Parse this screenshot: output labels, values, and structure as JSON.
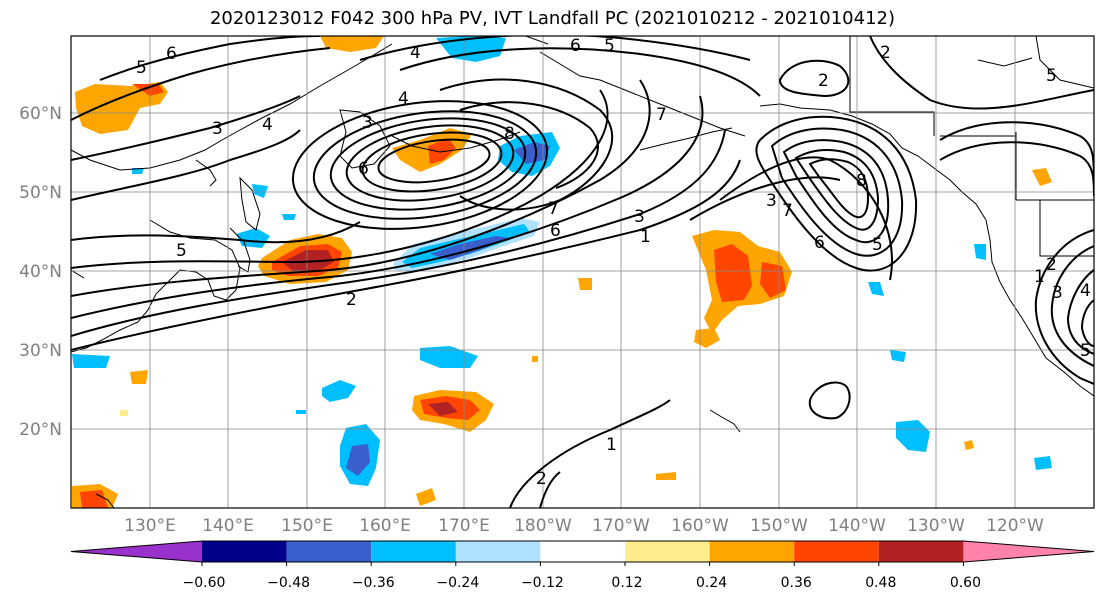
{
  "title": "2020123012 F042 300 hPa PV, IVT Landfall PC (2021010212 - 2021010412)",
  "lat_labels": [
    "60°N",
    "50°N",
    "40°N",
    "30°N",
    "20°N"
  ],
  "lon_labels": [
    "130°E",
    "140°E",
    "150°E",
    "160°E",
    "170°E",
    "180°W",
    "170°W",
    "160°W",
    "150°W",
    "140°W",
    "130°W",
    "120°W"
  ],
  "colorbar": {
    "ticks": [
      "−0.60",
      "−0.48",
      "−0.36",
      "−0.24",
      "−0.12",
      "0.12",
      "0.24",
      "0.36",
      "0.48",
      "0.60"
    ],
    "colors": [
      "#9932cc",
      "#00008b",
      "#3a5fcd",
      "#00bfff",
      "#b0e2ff",
      "#ffffff",
      "#ffec8b",
      "#ffa500",
      "#ff4500",
      "#b22222",
      "#ff82ab"
    ]
  },
  "contour_labels": [
    "6",
    "5",
    "4",
    "6",
    "5",
    "3",
    "4",
    "4",
    "3",
    "8",
    "7",
    "2",
    "5",
    "7",
    "6",
    "3",
    "1",
    "6",
    "5",
    "2",
    "2",
    "8",
    "6",
    "3",
    "5",
    "7",
    "2",
    "1",
    "3",
    "4",
    "5",
    "1",
    "2"
  ]
}
